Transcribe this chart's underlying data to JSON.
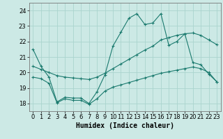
{
  "title": "",
  "xlabel": "Humidex (Indice chaleur)",
  "ylabel": "",
  "bg_color": "#cce9e5",
  "grid_color": "#aad4ce",
  "line_color": "#1a7a6e",
  "xlim": [
    -0.5,
    23.5
  ],
  "ylim": [
    17.5,
    24.5
  ],
  "x_ticks": [
    0,
    1,
    2,
    3,
    4,
    5,
    6,
    7,
    8,
    9,
    10,
    11,
    12,
    13,
    14,
    15,
    16,
    17,
    18,
    19,
    20,
    21,
    22,
    23
  ],
  "y_ticks": [
    18,
    19,
    20,
    21,
    22,
    23,
    24
  ],
  "line1_x": [
    0,
    1,
    2,
    3,
    4,
    5,
    6,
    7,
    8,
    9,
    10,
    11,
    12,
    13,
    14,
    15,
    16,
    17,
    18,
    19,
    20,
    21,
    22,
    23
  ],
  "line1_y": [
    21.5,
    20.4,
    19.7,
    18.1,
    18.4,
    18.35,
    18.35,
    18.0,
    18.75,
    19.85,
    21.7,
    22.6,
    23.5,
    23.8,
    23.1,
    23.2,
    23.8,
    21.75,
    22.0,
    22.5,
    20.65,
    20.5,
    19.9,
    19.4
  ],
  "line2_x": [
    0,
    1,
    2,
    3,
    4,
    5,
    6,
    7,
    8,
    9,
    10,
    11,
    12,
    13,
    14,
    15,
    16,
    17,
    18,
    19,
    20,
    21,
    22,
    23
  ],
  "line2_y": [
    20.4,
    20.2,
    20.0,
    19.8,
    19.7,
    19.65,
    19.6,
    19.55,
    19.7,
    19.95,
    20.25,
    20.55,
    20.85,
    21.15,
    21.45,
    21.7,
    22.1,
    22.25,
    22.4,
    22.5,
    22.55,
    22.4,
    22.1,
    21.8
  ],
  "line3_x": [
    0,
    1,
    2,
    3,
    4,
    5,
    6,
    7,
    8,
    9,
    10,
    11,
    12,
    13,
    14,
    15,
    16,
    17,
    18,
    19,
    20,
    21,
    22,
    23
  ],
  "line3_y": [
    19.7,
    19.6,
    19.3,
    18.05,
    18.3,
    18.2,
    18.2,
    17.95,
    18.3,
    18.8,
    19.05,
    19.2,
    19.35,
    19.5,
    19.65,
    19.8,
    19.95,
    20.05,
    20.15,
    20.25,
    20.35,
    20.25,
    20.0,
    19.4
  ],
  "font_size_label": 7,
  "font_size_tick": 6
}
